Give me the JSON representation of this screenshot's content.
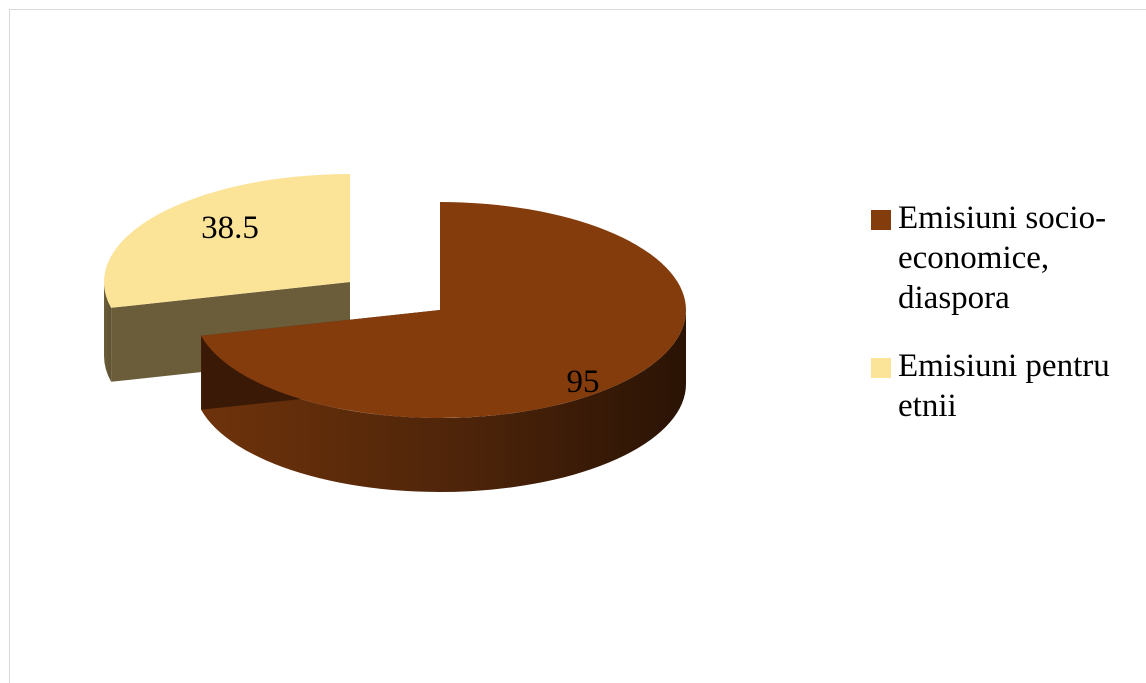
{
  "chart_data": {
    "type": "pie",
    "style": "3d-exploded",
    "series": [
      {
        "values": [
          95,
          38.5
        ],
        "labels": [
          "Emisiuni socio-economice, diaspora",
          "Emisiuni pentru etnii"
        ]
      }
    ],
    "slices": [
      {
        "label": "Emisiuni socio-economice, diaspora",
        "value": 95,
        "value_label": "95",
        "color": "#843c0c",
        "side_color": "#4a2208"
      },
      {
        "label": "Emisiuni pentru etnii",
        "value": 38.5,
        "value_label": "38.5",
        "color": "#fbe398",
        "side_color": "#6b5d3a"
      }
    ],
    "legend": {
      "position": "right",
      "items": [
        {
          "lines": [
            "Emisiuni socio-",
            "economice,",
            "diaspora"
          ],
          "color": "#843c0c"
        },
        {
          "lines": [
            "Emisiuni pentru",
            "etnii"
          ],
          "color": "#fbe398"
        }
      ]
    },
    "title": "",
    "border_color": "#d9d9d9"
  }
}
